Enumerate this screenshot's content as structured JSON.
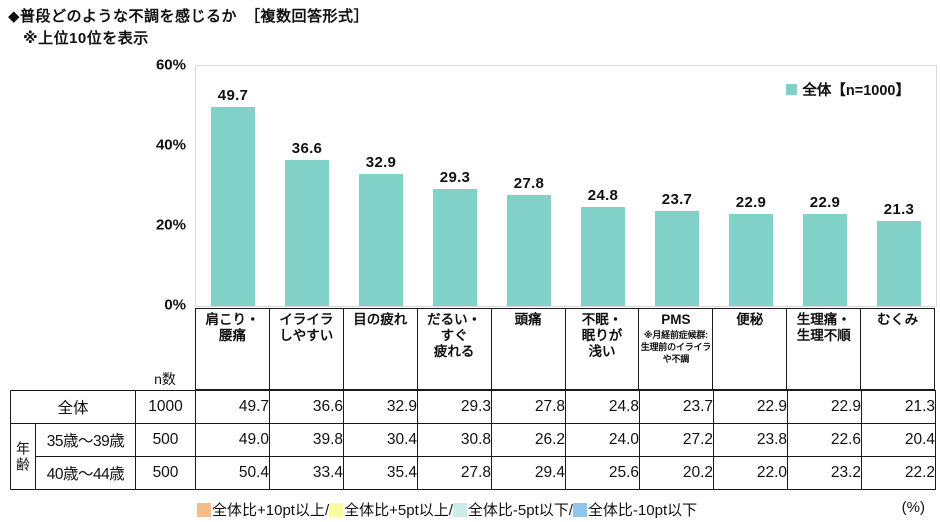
{
  "page": {
    "title": "◆普段どのような不調を感じるか　［複数回答形式］",
    "subtitle": "※上位10位を表示",
    "unit_label": "(%)"
  },
  "chart_data": {
    "type": "bar",
    "title": "普段どのような不調を感じるか（複数回答形式）上位10位",
    "series_name": "全体【n=1000】",
    "bar_color": "#82d1c8",
    "categories": [
      "肩こり・腰痛",
      "イライラしやすい",
      "目の疲れ",
      "だるい・すぐ疲れる",
      "頭痛",
      "不眠・眠りが浅い",
      "PMS",
      "便秘",
      "生理痛・生理不順",
      "むくみ"
    ],
    "values": [
      49.7,
      36.6,
      32.9,
      29.3,
      27.8,
      24.8,
      23.7,
      22.9,
      22.9,
      21.3
    ],
    "ylim": [
      0,
      60
    ],
    "yticks": [
      {
        "label": "60%",
        "value": 60
      },
      {
        "label": "40%",
        "value": 40
      },
      {
        "label": "20%",
        "value": 20
      },
      {
        "label": "0%",
        "value": 0
      }
    ],
    "grid": false,
    "legend_position": "top-right"
  },
  "category_headers": [
    {
      "lines": [
        "肩こり・",
        "腰痛"
      ]
    },
    {
      "lines": [
        "イライラ",
        "しやすい"
      ]
    },
    {
      "lines": [
        "目の疲れ"
      ]
    },
    {
      "lines": [
        "だるい・",
        "すぐ",
        "疲れる"
      ]
    },
    {
      "lines": [
        "頭痛"
      ]
    },
    {
      "lines": [
        "不眠・",
        "眠りが",
        "浅い"
      ]
    },
    {
      "lines": [
        "PMS"
      ],
      "note": "※月経前症候群:生理前のイライラや不調"
    },
    {
      "lines": [
        "便秘"
      ]
    },
    {
      "lines": [
        "生理痛・",
        "生理不順"
      ]
    },
    {
      "lines": [
        "むくみ"
      ]
    }
  ],
  "table": {
    "n_column_header": "n数",
    "group_label": "年齢",
    "rows": [
      {
        "group": "",
        "label": "全体",
        "n": "1000",
        "values": [
          49.7,
          36.6,
          32.9,
          29.3,
          27.8,
          24.8,
          23.7,
          22.9,
          22.9,
          21.3
        ]
      },
      {
        "group": "年齢",
        "label": "35歳～39歳",
        "n": "500",
        "values": [
          49.0,
          39.8,
          30.4,
          30.8,
          26.2,
          24.0,
          27.2,
          23.8,
          22.6,
          20.4
        ]
      },
      {
        "group": "年齢",
        "label": "40歳～44歳",
        "n": "500",
        "values": [
          50.4,
          33.4,
          35.4,
          27.8,
          29.4,
          25.6,
          20.2,
          22.0,
          23.2,
          22.2
        ]
      }
    ]
  },
  "threshold_legend": {
    "items": [
      {
        "color": "#f3be8c",
        "label": "全体比+10pt以上/"
      },
      {
        "color": "#fafa9e",
        "label": "全体比+5pt以上/"
      },
      {
        "color": "#cbedea",
        "label": "全体比-5pt以下/"
      },
      {
        "color": "#92c5ec",
        "label": "全体比-10pt以下"
      }
    ]
  }
}
